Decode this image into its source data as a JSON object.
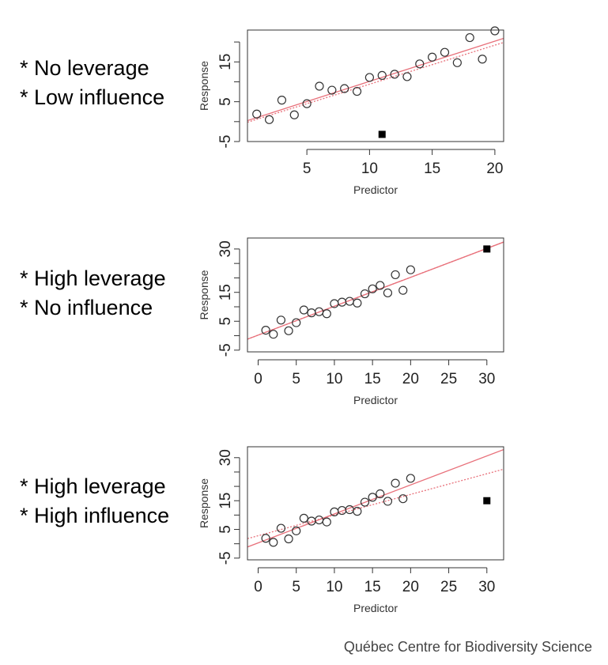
{
  "labels": [
    [
      "* No leverage",
      "* Low influence"
    ],
    [
      "* High leverage",
      "* No influence"
    ],
    [
      "* High leverage",
      "* High influence"
    ]
  ],
  "footer": "Québec Centre for Biodiversity Science",
  "colors": {
    "fit_line": "#e8707a",
    "points": "#333333",
    "outlier": "#000000"
  },
  "chart_data": [
    {
      "type": "scatter",
      "title": "No leverage, low influence",
      "xlabel": "Predictor",
      "ylabel": "Response",
      "xlim": [
        0.26,
        20.7
      ],
      "ylim": [
        -5,
        23
      ],
      "xticks": [
        5,
        10,
        15,
        20
      ],
      "xtick_labels": [
        "5",
        "10",
        "15",
        "20"
      ],
      "yticks": [
        -5,
        0,
        5,
        10,
        15,
        20
      ],
      "ytick_labels": [
        "-5",
        "",
        "5",
        "",
        "15",
        ""
      ],
      "points": {
        "x": [
          1,
          2,
          3,
          4,
          5,
          6,
          7,
          8,
          9,
          10,
          11,
          12,
          13,
          14,
          15,
          16,
          17,
          18,
          19,
          20
        ],
        "y": [
          1.9,
          0.5,
          5.4,
          1.7,
          4.5,
          8.9,
          7.9,
          8.3,
          7.6,
          11.1,
          11.6,
          11.9,
          11.3,
          14.5,
          16.2,
          17.4,
          14.8,
          21.1,
          15.7,
          22.8
        ]
      },
      "outlier": {
        "x": 11,
        "y": -3.2
      },
      "fit_without_outlier": {
        "intercept": 0.0,
        "slope": 1.01,
        "style": "solid"
      },
      "fit_with_outlier": {
        "intercept": -0.4,
        "slope": 0.98,
        "style": "dotted"
      }
    },
    {
      "type": "scatter",
      "title": "High leverage, no influence",
      "xlabel": "Predictor",
      "ylabel": "Response",
      "xlim": [
        -1.4,
        32.2
      ],
      "ylim": [
        -5.6,
        33.8
      ],
      "xticks": [
        0,
        5,
        10,
        15,
        20,
        25,
        30
      ],
      "xtick_labels": [
        "0",
        "5",
        "10",
        "15",
        "20",
        "25",
        "30"
      ],
      "yticks": [
        -5,
        0,
        5,
        10,
        15,
        20,
        25,
        30
      ],
      "ytick_labels": [
        "-5",
        "",
        "5",
        "",
        "15",
        "",
        "",
        "30"
      ],
      "points": {
        "x": [
          1,
          2,
          3,
          4,
          5,
          6,
          7,
          8,
          9,
          10,
          11,
          12,
          13,
          14,
          15,
          16,
          17,
          18,
          19,
          20
        ],
        "y": [
          1.9,
          0.5,
          5.4,
          1.7,
          4.5,
          8.9,
          7.9,
          8.3,
          7.6,
          11.1,
          11.6,
          11.9,
          11.3,
          14.5,
          16.2,
          17.4,
          14.8,
          21.1,
          15.7,
          22.8
        ]
      },
      "outlier": {
        "x": 30,
        "y": 30
      },
      "fit_without_outlier": {
        "intercept": 0.2,
        "slope": 1.0,
        "style": "solid"
      },
      "fit_with_outlier": {
        "intercept": 0.2,
        "slope": 1.0,
        "style": "dotted"
      }
    },
    {
      "type": "scatter",
      "title": "High leverage, high influence",
      "xlabel": "Predictor",
      "ylabel": "Response",
      "xlim": [
        -1.4,
        32.2
      ],
      "ylim": [
        -5.6,
        33.8
      ],
      "xticks": [
        0,
        5,
        10,
        15,
        20,
        25,
        30
      ],
      "xtick_labels": [
        "0",
        "5",
        "10",
        "15",
        "20",
        "25",
        "30"
      ],
      "yticks": [
        -5,
        0,
        5,
        10,
        15,
        20,
        25,
        30
      ],
      "ytick_labels": [
        "-5",
        "",
        "5",
        "",
        "15",
        "",
        "",
        "30"
      ],
      "points": {
        "x": [
          1,
          2,
          3,
          4,
          5,
          6,
          7,
          8,
          9,
          10,
          11,
          12,
          13,
          14,
          15,
          16,
          17,
          18,
          19,
          20
        ],
        "y": [
          1.9,
          0.5,
          5.4,
          1.7,
          4.5,
          8.9,
          7.9,
          8.3,
          7.6,
          11.1,
          11.6,
          11.9,
          11.3,
          14.5,
          16.2,
          17.4,
          14.8,
          21.1,
          15.7,
          22.8
        ]
      },
      "outlier": {
        "x": 30,
        "y": 15
      },
      "fit_without_outlier": {
        "intercept": 0.3,
        "slope": 1.01,
        "style": "solid"
      },
      "fit_with_outlier": {
        "intercept": 2.8,
        "slope": 0.72,
        "style": "dotted"
      }
    }
  ]
}
